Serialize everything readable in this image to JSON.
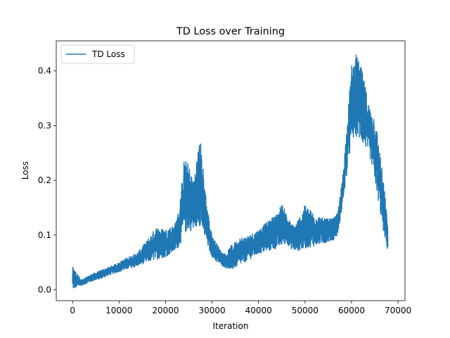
{
  "chart_data": {
    "type": "line",
    "title": "TD Loss over Training",
    "xlabel": "Iteration",
    "ylabel": "Loss",
    "xlim": [
      -3500,
      71500
    ],
    "ylim": [
      -0.02,
      0.455
    ],
    "xticks": [
      0,
      10000,
      20000,
      30000,
      40000,
      50000,
      60000,
      70000
    ],
    "xtick_labels": [
      "0",
      "10000",
      "20000",
      "30000",
      "40000",
      "50000",
      "60000",
      "70000"
    ],
    "yticks": [
      0.0,
      0.1,
      0.2,
      0.3,
      0.4
    ],
    "ytick_labels": [
      "0.0",
      "0.1",
      "0.2",
      "0.3",
      "0.4"
    ],
    "grid": false,
    "legend_position": "upper-left",
    "series": [
      {
        "name": "TD Loss",
        "color": "#1f77b4",
        "x": [
          0,
          2000,
          4000,
          6000,
          8000,
          10000,
          12000,
          14000,
          16000,
          18000,
          20000,
          22000,
          23000,
          24000,
          25000,
          26000,
          27000,
          27500,
          28000,
          29000,
          30000,
          31000,
          32000,
          33000,
          34000,
          36000,
          38000,
          40000,
          42000,
          44000,
          45000,
          46000,
          47000,
          48000,
          50000,
          52000,
          54000,
          56000,
          57000,
          58000,
          59000,
          60000,
          61000,
          62000,
          63000,
          64000,
          65000,
          66000,
          67000,
          67800
        ],
        "low": [
          0.0,
          0.008,
          0.015,
          0.02,
          0.027,
          0.033,
          0.038,
          0.043,
          0.05,
          0.055,
          0.06,
          0.07,
          0.08,
          0.1,
          0.11,
          0.105,
          0.12,
          0.115,
          0.1,
          0.08,
          0.06,
          0.05,
          0.045,
          0.04,
          0.035,
          0.045,
          0.055,
          0.065,
          0.07,
          0.075,
          0.08,
          0.085,
          0.075,
          0.07,
          0.075,
          0.08,
          0.085,
          0.09,
          0.1,
          0.15,
          0.21,
          0.27,
          0.28,
          0.27,
          0.26,
          0.24,
          0.2,
          0.15,
          0.1,
          0.07
        ],
        "high": [
          0.042,
          0.018,
          0.028,
          0.035,
          0.042,
          0.05,
          0.06,
          0.068,
          0.09,
          0.115,
          0.11,
          0.12,
          0.15,
          0.24,
          0.23,
          0.2,
          0.26,
          0.275,
          0.23,
          0.15,
          0.1,
          0.085,
          0.07,
          0.065,
          0.08,
          0.095,
          0.1,
          0.11,
          0.125,
          0.14,
          0.158,
          0.14,
          0.12,
          0.12,
          0.155,
          0.14,
          0.13,
          0.13,
          0.14,
          0.2,
          0.3,
          0.41,
          0.43,
          0.41,
          0.37,
          0.33,
          0.32,
          0.26,
          0.19,
          0.12
        ]
      }
    ]
  }
}
